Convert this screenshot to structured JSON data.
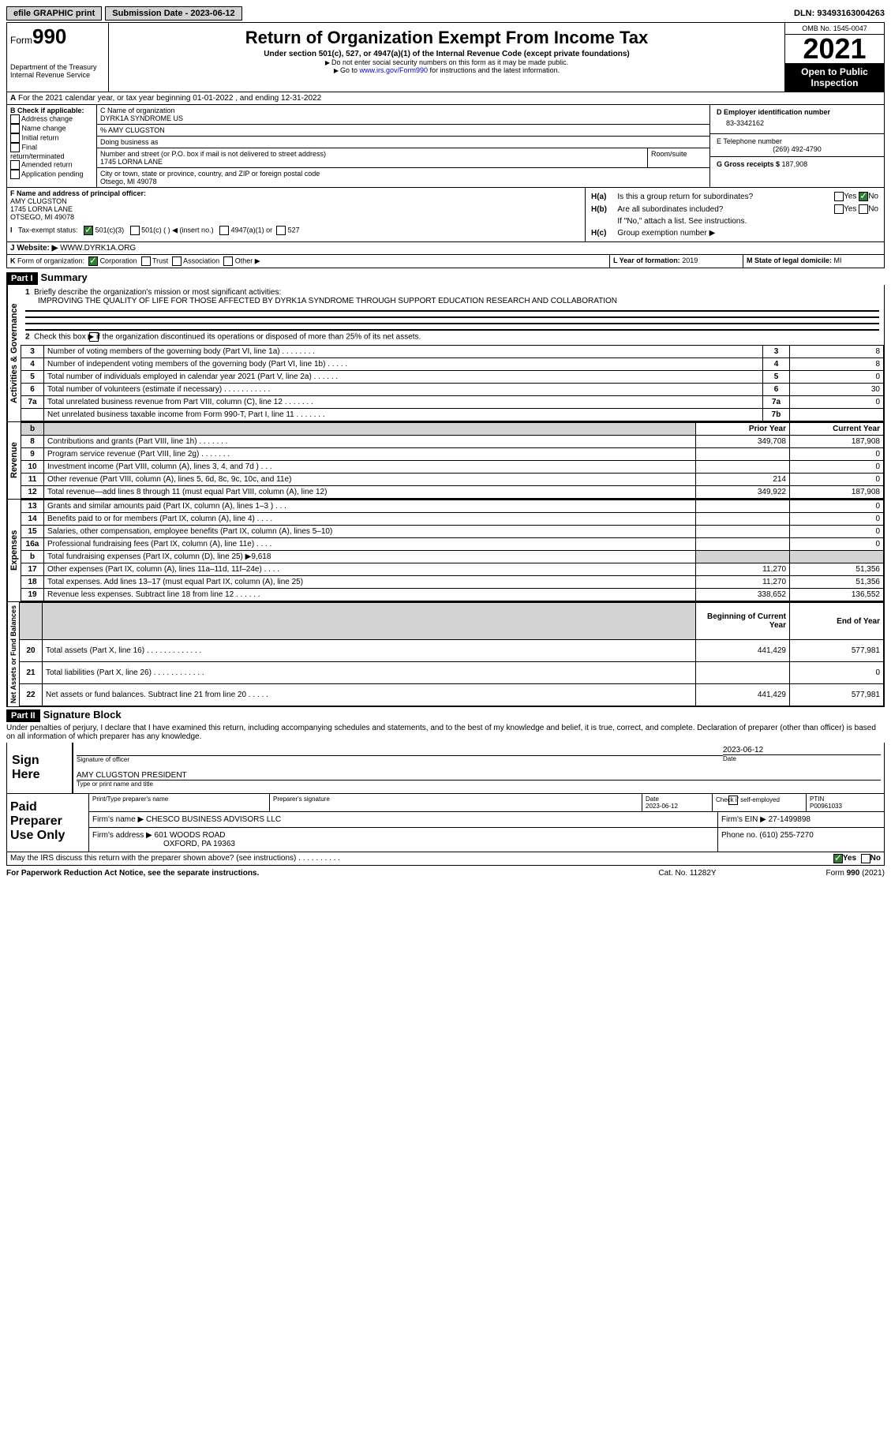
{
  "topbar": {
    "efile": "efile GRAPHIC print",
    "subdate_label": "Submission Date - ",
    "subdate": "2023-06-12",
    "dln_label": "DLN: ",
    "dln": "93493163004263"
  },
  "hdr": {
    "form_prefix": "Form",
    "form_no": "990",
    "title": "Return of Organization Exempt From Income Tax",
    "sub": "Under section 501(c), 527, or 4947(a)(1) of the Internal Revenue Code (except private foundations)",
    "note1": "Do not enter social security numbers on this form as it may be made public.",
    "note2_a": "Go to ",
    "note2_link": "www.irs.gov/Form990",
    "note2_b": " for instructions and the latest information.",
    "dept": "Department of the Treasury\nInternal Revenue Service",
    "omb": "OMB No. 1545-0047",
    "year": "2021",
    "inspect": "Open to Public Inspection"
  },
  "A": {
    "text": "For the 2021 calendar year, or tax year beginning 01-01-2022    , and ending 12-31-2022"
  },
  "B": {
    "label": "B Check if applicable:",
    "opts": [
      "Address change",
      "Name change",
      "Initial return",
      "Final return/terminated",
      "Amended return",
      "Application pending"
    ]
  },
  "C": {
    "name_lbl": "C Name of organization",
    "name": "DYRK1A SYNDROME US",
    "care": "% AMY CLUGSTON",
    "dba_lbl": "Doing business as",
    "addr_lbl": "Number and street (or P.O. box if mail is not delivered to street address)",
    "room_lbl": "Room/suite",
    "addr": "1745 LORNA LANE",
    "city_lbl": "City or town, state or province, country, and ZIP or foreign postal code",
    "city": "Otsego, MI  49078"
  },
  "D": {
    "lbl": "D Employer identification number",
    "val": "83-3342162"
  },
  "E": {
    "lbl": "E Telephone number",
    "val": "(269) 492-4790"
  },
  "G": {
    "lbl": "G Gross receipts $ ",
    "val": "187,908"
  },
  "F": {
    "lbl": "F  Name and address of principal officer:",
    "name": "AMY CLUGSTON",
    "addr": "1745 LORNA LANE",
    "city": "OTSEGO, MI  49078"
  },
  "H": {
    "a_lbl": "Is this a group return for subordinates?",
    "a_no": "No",
    "b_lbl": "Are all subordinates included?",
    "b_note": "If \"No,\" attach a list. See instructions.",
    "c_lbl": "Group exemption number ▶",
    "yes": "Yes",
    "no": "No",
    "ha": "H(a)",
    "hb": "H(b)",
    "hc": "H(c)"
  },
  "I": {
    "lbl": "I   Tax-exempt status:",
    "a": "501(c)(3)",
    "b": "501(c) (  ) ◀ (insert no.)",
    "c": "4947(a)(1) or",
    "d": "527"
  },
  "J": {
    "lbl": "J   Website: ▶",
    "val": "  WWW.DYRK1A.ORG"
  },
  "K": {
    "lbl": "K Form of organization:",
    "a": "Corporation",
    "b": "Trust",
    "c": "Association",
    "d": "Other ▶"
  },
  "L": {
    "lbl": "L Year of formation: ",
    "val": "2019"
  },
  "M": {
    "lbl": "M State of legal domicile: ",
    "val": "MI"
  },
  "part1": {
    "bar": "Part I",
    "title": "Summary"
  },
  "mission": {
    "lbl": "Briefly describe the organization's mission or most significant activities:",
    "text": "IMPROVING THE QUALITY OF LIFE FOR THOSE AFFECTED BY DYRK1A SYNDROME THROUGH SUPPORT EDUCATION RESEARCH AND COLLABORATION"
  },
  "line2": "Check this box ▶           if the organization discontinued its operations or disposed of more than 25% of its net assets.",
  "gov": {
    "label": "Activities & Governance",
    "rows": [
      {
        "n": "3",
        "d": "Number of voting members of the governing body (Part VI, line 1a)   .     .     .     .     .     .     .     .",
        "b": "3",
        "v": "8"
      },
      {
        "n": "4",
        "d": "Number of independent voting members of the governing body (Part VI, line 1b)   .     .     .     .     .",
        "b": "4",
        "v": "8"
      },
      {
        "n": "5",
        "d": "Total number of individuals employed in calendar year 2021 (Part V, line 2a)   .     .     .     .     .     .",
        "b": "5",
        "v": "0"
      },
      {
        "n": "6",
        "d": "Total number of volunteers (estimate if necessary)    .     .     .     .     .     .     .     .     .     .     .",
        "b": "6",
        "v": "30"
      },
      {
        "n": "7a",
        "d": "Total unrelated business revenue from Part VIII, column (C), line 12    .     .     .     .     .     .     .",
        "b": "7a",
        "v": "0"
      },
      {
        "n": "",
        "d": "Net unrelated business taxable income from Form 990-T, Part I, line 11   .     .     .     .     .     .     .",
        "b": "7b",
        "v": ""
      }
    ]
  },
  "pyr": "Prior Year",
  "cyr": "Current Year",
  "rev": {
    "label": "Revenue",
    "rows": [
      {
        "n": "8",
        "d": "Contributions and grants (Part VIII, line 1h)    .     .     .     .     .     .     .",
        "p": "349,708",
        "c": "187,908"
      },
      {
        "n": "9",
        "d": "Program service revenue (Part VIII, line 2g)    .     .     .     .     .     .     .",
        "p": "",
        "c": "0"
      },
      {
        "n": "10",
        "d": "Investment income (Part VIII, column (A), lines 3, 4, and 7d )    .     .     .",
        "p": "",
        "c": "0"
      },
      {
        "n": "11",
        "d": "Other revenue (Part VIII, column (A), lines 5, 6d, 8c, 9c, 10c, and 11e)",
        "p": "214",
        "c": "0"
      },
      {
        "n": "12",
        "d": "Total revenue—add lines 8 through 11 (must equal Part VIII, column (A), line 12)",
        "p": "349,922",
        "c": "187,908"
      }
    ]
  },
  "exp": {
    "label": "Expenses",
    "rows": [
      {
        "n": "13",
        "d": "Grants and similar amounts paid (Part IX, column (A), lines 1–3 )   .     .     .",
        "p": "",
        "c": "0"
      },
      {
        "n": "14",
        "d": "Benefits paid to or for members (Part IX, column (A), line 4)    .     .     .     .",
        "p": "",
        "c": "0"
      },
      {
        "n": "15",
        "d": "Salaries, other compensation, employee benefits (Part IX, column (A), lines 5–10)",
        "p": "",
        "c": "0"
      },
      {
        "n": "16a",
        "d": "Professional fundraising fees (Part IX, column (A), line 11e)    .     .     .     .",
        "p": "",
        "c": "0"
      },
      {
        "n": "b",
        "d": "Total fundraising expenses (Part IX, column (D), line 25) ▶9,618",
        "p": "",
        "c": "",
        "shade": true
      },
      {
        "n": "17",
        "d": "Other expenses (Part IX, column (A), lines 11a–11d, 11f–24e)    .     .     .     .",
        "p": "11,270",
        "c": "51,356"
      },
      {
        "n": "18",
        "d": "Total expenses. Add lines 13–17 (must equal Part IX, column (A), line 25)",
        "p": "11,270",
        "c": "51,356"
      },
      {
        "n": "19",
        "d": "Revenue less expenses. Subtract line 18 from line 12   .     .     .     .     .     .",
        "p": "338,652",
        "c": "136,552"
      }
    ]
  },
  "boy": "Beginning of Current Year",
  "eoy": "End of Year",
  "net": {
    "label": "Net Assets or Fund Balances",
    "rows": [
      {
        "n": "20",
        "d": "Total assets (Part X, line 16)   .    .    .    .    .    .    .    .    .    .    .    .    .",
        "p": "441,429",
        "c": "577,981"
      },
      {
        "n": "21",
        "d": "Total liabilities (Part X, line 26)   .    .    .    .    .    .    .    .    .    .    .    .",
        "p": "",
        "c": "0"
      },
      {
        "n": "22",
        "d": "Net assets or fund balances. Subtract line 21 from line 20   .    .    .    .    .",
        "p": "441,429",
        "c": "577,981"
      }
    ]
  },
  "part2": {
    "bar": "Part II",
    "title": "Signature Block"
  },
  "penalty": "Under penalties of perjury, I declare that I have examined this return, including accompanying schedules and statements, and to the best of my knowledge and belief, it is true, correct, and complete. Declaration of preparer (other than officer) is based on all information of which preparer has any knowledge.",
  "sign": {
    "here": "Sign Here",
    "sig_lbl": "Signature of officer",
    "date_lbl": "Date",
    "date": "2023-06-12",
    "name": "AMY CLUGSTON  PRESIDENT",
    "name_lbl": "Type or print name and title"
  },
  "paid": {
    "title": "Paid Preparer Use Only",
    "pname_lbl": "Print/Type preparer's name",
    "psig_lbl": "Preparer's signature",
    "pdate_lbl": "Date",
    "pdate": "2023-06-12",
    "check_lbl": "Check           if self-employed",
    "ptin_lbl": "PTIN",
    "ptin": "P00961033",
    "firm_lbl": "Firm's name    ▶",
    "firm": " CHESCO BUSINESS ADVISORS LLC",
    "ein_lbl": "Firm's EIN ▶",
    "ein": " 27-1499898",
    "addr_lbl": "Firm's address ▶",
    "addr": " 601 WOODS ROAD",
    "addr2": "OXFORD, PA  19363",
    "phone_lbl": "Phone no. ",
    "phone": "(610) 255-7270"
  },
  "discuss": "May the IRS discuss this return with the preparer shown above? (see instructions)    .     .     .     .     .     .     .     .     .     .",
  "foot": {
    "l": "For Paperwork Reduction Act Notice, see the separate instructions.",
    "c": "Cat. No. 11282Y",
    "r": "Form 990 (2021)"
  }
}
